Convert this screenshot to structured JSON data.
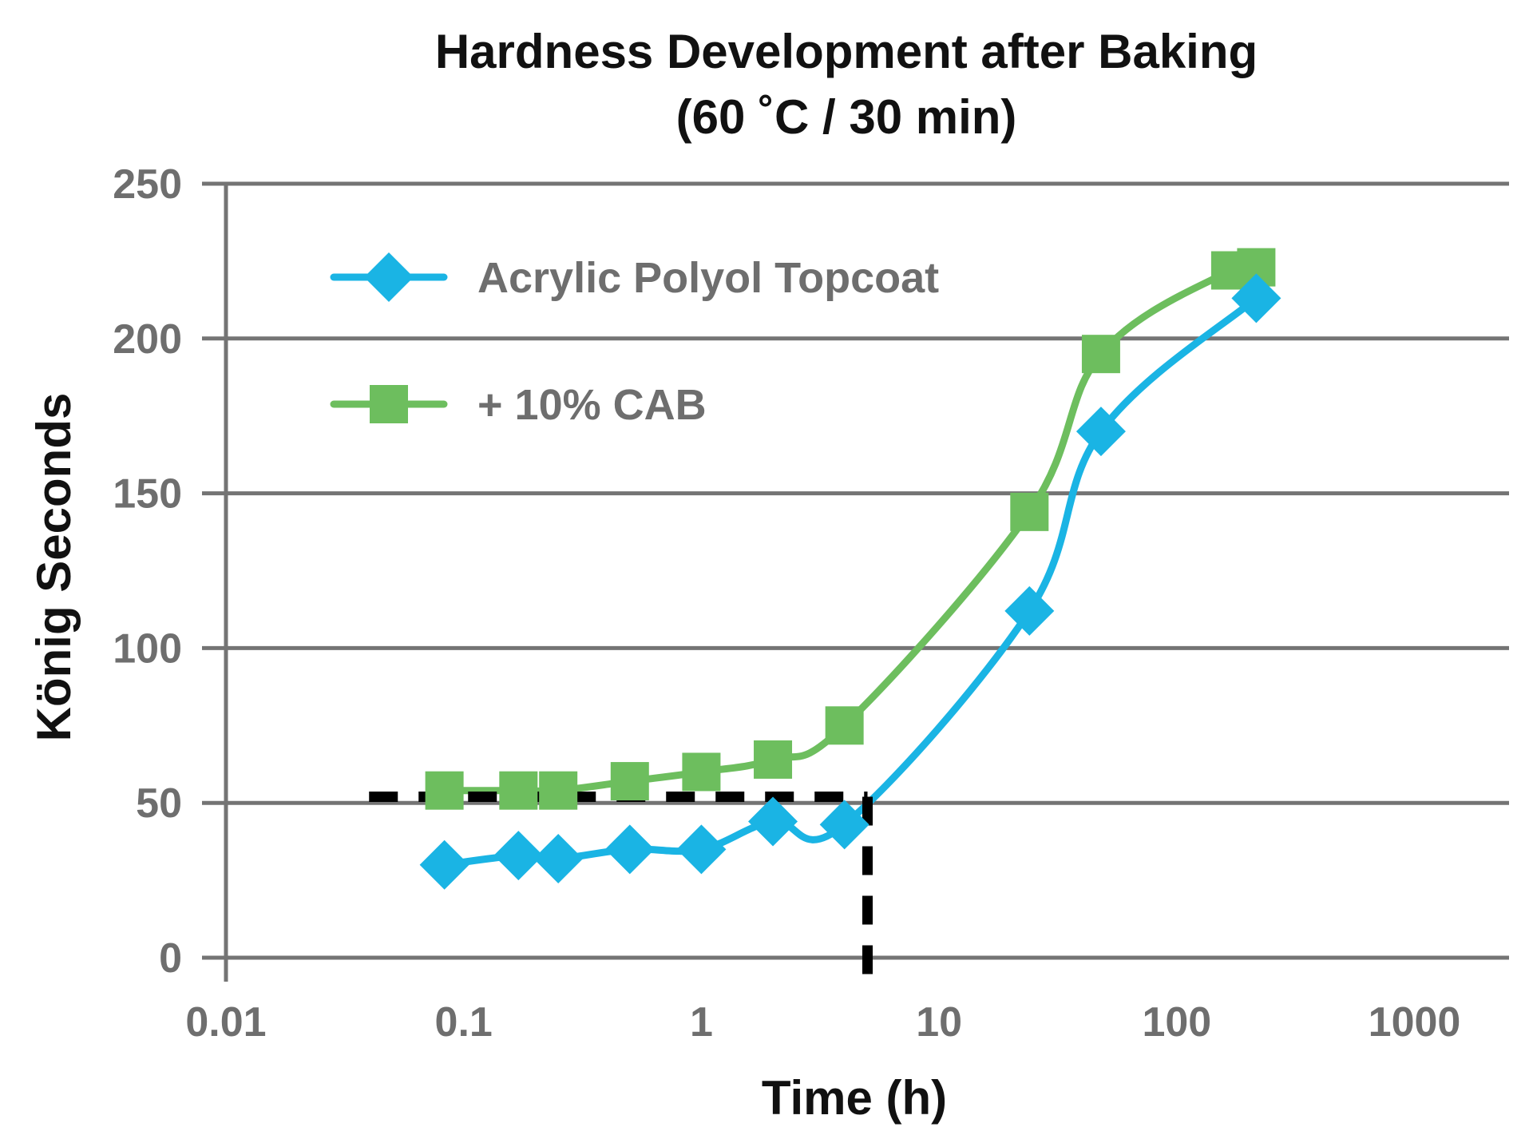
{
  "chart_data": {
    "type": "line",
    "title_line1": "Hardness Development after Baking",
    "title_line2": "(60 ˚C / 30 min)",
    "xlabel": "Time (h)",
    "ylabel": "König Seconds",
    "x_scale": "log",
    "xlim": [
      0.01,
      2500
    ],
    "ylim": [
      0,
      250
    ],
    "x_ticks": [
      {
        "value": 0.01,
        "label": "0.01"
      },
      {
        "value": 0.1,
        "label": "0.1"
      },
      {
        "value": 1,
        "label": "1"
      },
      {
        "value": 10,
        "label": "10"
      },
      {
        "value": 100,
        "label": "100"
      },
      {
        "value": 1000,
        "label": "1000"
      }
    ],
    "y_ticks": [
      {
        "value": 0,
        "label": "0"
      },
      {
        "value": 50,
        "label": "50"
      },
      {
        "value": 100,
        "label": "100"
      },
      {
        "value": 150,
        "label": "150"
      },
      {
        "value": 200,
        "label": "200"
      },
      {
        "value": 250,
        "label": "250"
      }
    ],
    "grid": "horizontal",
    "legend_position": "top-left",
    "series": [
      {
        "name": "Acrylic Polyol Topcoat",
        "marker": "diamond",
        "color": "#1ab4e4",
        "points": [
          {
            "x": 0.083,
            "y": 30
          },
          {
            "x": 0.17,
            "y": 33
          },
          {
            "x": 0.25,
            "y": 32
          },
          {
            "x": 0.5,
            "y": 35
          },
          {
            "x": 1,
            "y": 35
          },
          {
            "x": 2,
            "y": 44
          },
          {
            "x": 4,
            "y": 43
          },
          {
            "x": 24,
            "y": 112
          },
          {
            "x": 48,
            "y": 170
          },
          {
            "x": 216,
            "y": 213
          }
        ]
      },
      {
        "name": "+ 10% CAB",
        "marker": "square",
        "color": "#6dbe5e",
        "points": [
          {
            "x": 0.083,
            "y": 54
          },
          {
            "x": 0.17,
            "y": 54
          },
          {
            "x": 0.25,
            "y": 54
          },
          {
            "x": 0.5,
            "y": 57
          },
          {
            "x": 1,
            "y": 60
          },
          {
            "x": 2,
            "y": 64
          },
          {
            "x": 4,
            "y": 75
          },
          {
            "x": 24,
            "y": 144
          },
          {
            "x": 48,
            "y": 195
          },
          {
            "x": 168,
            "y": 222
          },
          {
            "x": 216,
            "y": 223
          }
        ]
      }
    ],
    "reference_lines": [
      {
        "from": {
          "x": 0.04,
          "y": 52
        },
        "to": {
          "x": 5,
          "y": 52
        }
      },
      {
        "from": {
          "x": 5,
          "y": 52
        },
        "to": {
          "x": 5,
          "y": -8
        }
      }
    ]
  }
}
